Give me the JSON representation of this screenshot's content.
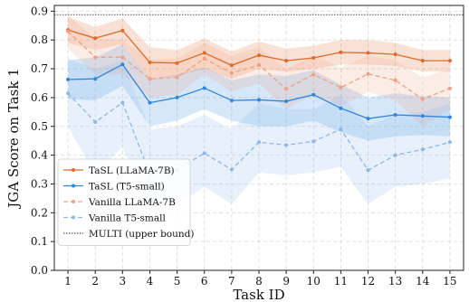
{
  "chart_data": {
    "type": "line",
    "title": "",
    "xlabel": "Task ID",
    "ylabel": "JGA Score on Task 1",
    "x": [
      1,
      2,
      3,
      4,
      5,
      6,
      7,
      8,
      9,
      10,
      11,
      12,
      13,
      14,
      15
    ],
    "xlim": [
      0.5,
      15.5
    ],
    "ylim": [
      0.0,
      0.92
    ],
    "yticks": [
      "0.0",
      "0.1",
      "0.2",
      "0.3",
      "0.4",
      "0.5",
      "0.6",
      "0.7",
      "0.8",
      "0.9"
    ],
    "grid": true,
    "legend_position": "bottom-left",
    "reference_line": {
      "name": "MULTI (upper bound)",
      "value": 0.888,
      "color": "#555555"
    },
    "series": [
      {
        "name": "TaSL (LLaMA-7B)",
        "color": "#e06a2b",
        "style": "solid",
        "values": [
          0.835,
          0.806,
          0.833,
          0.722,
          0.72,
          0.755,
          0.712,
          0.747,
          0.728,
          0.738,
          0.757,
          0.755,
          0.75,
          0.728,
          0.728
        ],
        "lower": [
          0.79,
          0.765,
          0.785,
          0.665,
          0.675,
          0.7,
          0.665,
          0.7,
          0.69,
          0.7,
          0.715,
          0.715,
          0.71,
          0.69,
          0.69
        ],
        "upper": [
          0.88,
          0.845,
          0.875,
          0.775,
          0.765,
          0.805,
          0.76,
          0.795,
          0.77,
          0.78,
          0.8,
          0.8,
          0.79,
          0.765,
          0.765
        ]
      },
      {
        "name": "TaSL (T5-small)",
        "color": "#2f86e0",
        "style": "solid",
        "values": [
          0.663,
          0.665,
          0.715,
          0.582,
          0.6,
          0.633,
          0.59,
          0.592,
          0.587,
          0.61,
          0.563,
          0.527,
          0.54,
          0.536,
          0.532
        ],
        "lower": [
          0.595,
          0.59,
          0.64,
          0.5,
          0.52,
          0.56,
          0.52,
          0.5,
          0.5,
          0.52,
          0.48,
          0.45,
          0.465,
          0.47,
          0.465
        ],
        "upper": [
          0.73,
          0.74,
          0.785,
          0.665,
          0.68,
          0.705,
          0.66,
          0.68,
          0.675,
          0.695,
          0.645,
          0.6,
          0.615,
          0.605,
          0.6
        ]
      },
      {
        "name": "Vanilla LLaMA-7B",
        "color": "#f0a080",
        "style": "dashed",
        "values": [
          0.83,
          0.74,
          0.74,
          0.665,
          0.67,
          0.735,
          0.685,
          0.713,
          0.63,
          0.68,
          0.635,
          0.682,
          0.66,
          0.595,
          0.632
        ],
        "lower": [
          0.77,
          0.68,
          0.68,
          0.6,
          0.61,
          0.68,
          0.62,
          0.65,
          0.56,
          0.61,
          0.57,
          0.62,
          0.59,
          0.5,
          0.56
        ],
        "upper": [
          0.885,
          0.805,
          0.8,
          0.73,
          0.735,
          0.79,
          0.745,
          0.775,
          0.7,
          0.745,
          0.705,
          0.745,
          0.73,
          0.67,
          0.7
        ]
      },
      {
        "name": "Vanilla T5-small",
        "color": "#8ab8ea",
        "style": "dashed",
        "values": [
          0.615,
          0.515,
          0.582,
          0.335,
          0.35,
          0.407,
          0.35,
          0.445,
          0.435,
          0.448,
          0.49,
          0.348,
          0.4,
          0.42,
          0.445
        ],
        "lower": [
          0.5,
          0.33,
          0.43,
          0.2,
          0.23,
          0.29,
          0.23,
          0.34,
          0.33,
          0.34,
          0.36,
          0.23,
          0.29,
          0.3,
          0.32
        ],
        "upper": [
          0.735,
          0.7,
          0.73,
          0.49,
          0.5,
          0.54,
          0.49,
          0.58,
          0.56,
          0.56,
          0.61,
          0.5,
          0.54,
          0.55,
          0.58
        ]
      }
    ]
  }
}
